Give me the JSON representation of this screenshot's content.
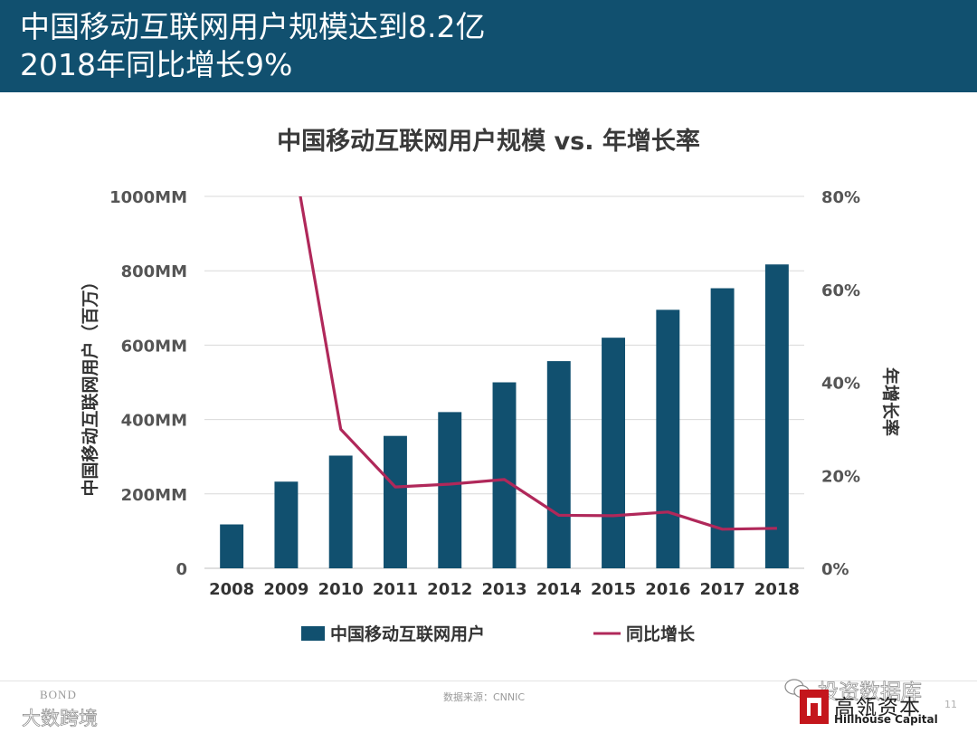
{
  "header": {
    "title_line1": "中国移动互联网用户规模达到8.2亿",
    "title_line2": "2018年同比增长9%",
    "background": "#11506f"
  },
  "chart_data": {
    "type": "bar",
    "title": "中国移动互联网用户规模 vs. 年增长率",
    "categories": [
      "2008",
      "2009",
      "2010",
      "2011",
      "2012",
      "2013",
      "2014",
      "2015",
      "2016",
      "2017",
      "2018"
    ],
    "series": [
      {
        "name": "中国移动互联网用户",
        "type": "bar",
        "axis": "left",
        "color": "#11506f",
        "values": [
          118,
          233,
          303,
          356,
          420,
          500,
          557,
          620,
          695,
          753,
          817
        ]
      },
      {
        "name": "同比增长",
        "type": "line",
        "axis": "right",
        "color": "#b0285a",
        "values": [
          null,
          97.5,
          29.9,
          17.5,
          18.1,
          19.1,
          11.4,
          11.3,
          12.1,
          8.4,
          8.6
        ]
      }
    ],
    "ylabel": "中国移动互联网用户（百万）",
    "y2label": "年增长率",
    "ylim": [
      0,
      1000
    ],
    "y2lim": [
      0,
      80
    ],
    "y_ticks": [
      "0",
      "200MM",
      "400MM",
      "600MM",
      "800MM",
      "1000MM"
    ],
    "y2_ticks": [
      "0%",
      "20%",
      "40%",
      "60%",
      "80%"
    ],
    "grid": true,
    "legend_position": "bottom"
  },
  "footer": {
    "source": "数据来源：CNNIC",
    "page_number": "11",
    "bond_text": "BOND",
    "watermark_left": "大数跨境",
    "watermark_right": "投资数据库",
    "logo_cn": "高瓴资本",
    "logo_en": "Hillhouse Capital",
    "logo_color": "#c4161c"
  }
}
